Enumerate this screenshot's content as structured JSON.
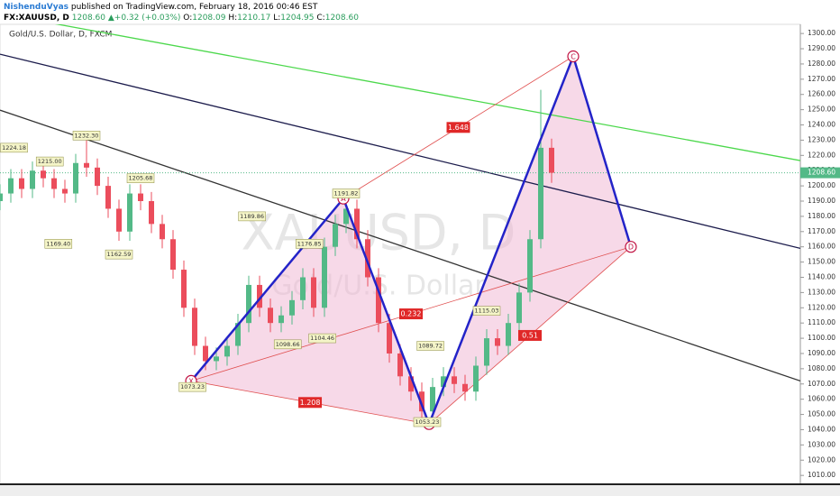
{
  "header": {
    "author": "NishenduVyas",
    "published": "published on TradingView.com, February 18, 2016 00:46 EST",
    "symbol": "FX:XAUUSD, D",
    "last": "1208.60",
    "change": "+0.32 (+0.03%)",
    "o_label": "O:",
    "o": "1208.09",
    "h_label": "H:",
    "h": "1210.17",
    "l_label": "L:",
    "l": "1204.95",
    "c_label": "C:",
    "c": "1208.60"
  },
  "chart_data": {
    "type": "candlestick",
    "title": "Gold/U.S. Dollar, D, FXCM",
    "watermark": "XAUUSD, D",
    "watermark_sub": "Gold/U.S. Dollar",
    "xlim": [
      0,
      74
    ],
    "ylim": [
      1005,
      1306
    ],
    "yticks": [
      {
        "value": 1010,
        "label": "1010.00"
      },
      {
        "value": 1020,
        "label": "1020.00"
      },
      {
        "value": 1030,
        "label": "1030.00"
      },
      {
        "value": 1040,
        "label": "1040.00"
      },
      {
        "value": 1050,
        "label": "1050.00"
      },
      {
        "value": 1060,
        "label": "1060.00"
      },
      {
        "value": 1070,
        "label": "1070.00"
      },
      {
        "value": 1080,
        "label": "1080.00"
      },
      {
        "value": 1090,
        "label": "1090.00"
      },
      {
        "value": 1100,
        "label": "1100.00"
      },
      {
        "value": 1110,
        "label": "1110.00"
      },
      {
        "value": 1120,
        "label": "1120.00"
      },
      {
        "value": 1130,
        "label": "1130.00"
      },
      {
        "value": 1140,
        "label": "1140.00"
      },
      {
        "value": 1150,
        "label": "1150.00"
      },
      {
        "value": 1160,
        "label": "1160.00"
      },
      {
        "value": 1170,
        "label": "1170.00"
      },
      {
        "value": 1180,
        "label": "1180.00"
      },
      {
        "value": 1190,
        "label": "1190.00"
      },
      {
        "value": 1200,
        "label": "1200.00"
      },
      {
        "value": 1210,
        "label": "1210.00"
      },
      {
        "value": 1220,
        "label": "1220.00"
      },
      {
        "value": 1230,
        "label": "1230.00"
      },
      {
        "value": 1240,
        "label": "1240.00"
      },
      {
        "value": 1250,
        "label": "1250.00"
      },
      {
        "value": 1260,
        "label": "1260.00"
      },
      {
        "value": 1270,
        "label": "1270.00"
      },
      {
        "value": 1280,
        "label": "1280.00"
      },
      {
        "value": 1290,
        "label": "1290.00"
      },
      {
        "value": 1300,
        "label": "1300.00"
      }
    ],
    "up_color": "#53b987",
    "down_color": "#eb4d5c",
    "open": [
      1190,
      1195,
      1205,
      1198,
      1210,
      1205,
      1198,
      1195,
      1215,
      1212,
      1200,
      1185,
      1170,
      1195,
      1190,
      1175,
      1165,
      1145,
      1120,
      1095,
      1085,
      1088,
      1095,
      1110,
      1135,
      1120,
      1110,
      1115,
      1125,
      1140,
      1120,
      1160,
      1175,
      1185,
      1165,
      1140,
      1110,
      1090,
      1075,
      1065,
      1052,
      1068,
      1075,
      1070,
      1065,
      1082,
      1100,
      1095,
      1110,
      1130,
      1165,
      1225
    ],
    "high": [
      1201,
      1211,
      1211,
      1216,
      1216,
      1211,
      1204,
      1221,
      1232,
      1218,
      1206,
      1191,
      1201,
      1201,
      1196,
      1181,
      1171,
      1151,
      1126,
      1101,
      1094,
      1101,
      1116,
      1141,
      1141,
      1126,
      1121,
      1131,
      1146,
      1146,
      1166,
      1181,
      1191,
      1191,
      1171,
      1146,
      1116,
      1096,
      1081,
      1071,
      1074,
      1081,
      1081,
      1076,
      1088,
      1106,
      1106,
      1116,
      1136,
      1171,
      1263,
      1231
    ],
    "low": [
      1184,
      1189,
      1192,
      1192,
      1199,
      1192,
      1189,
      1189,
      1206,
      1194,
      1179,
      1164,
      1164,
      1184,
      1169,
      1159,
      1139,
      1114,
      1089,
      1079,
      1079,
      1082,
      1089,
      1104,
      1114,
      1104,
      1104,
      1109,
      1119,
      1114,
      1114,
      1154,
      1169,
      1159,
      1134,
      1104,
      1084,
      1069,
      1059,
      1046,
      1046,
      1062,
      1064,
      1059,
      1059,
      1076,
      1089,
      1089,
      1104,
      1124,
      1159,
      1202
    ],
    "close": [
      1195,
      1205,
      1198,
      1210,
      1205,
      1198,
      1195,
      1215,
      1212,
      1200,
      1185,
      1170,
      1195,
      1190,
      1175,
      1165,
      1145,
      1120,
      1095,
      1085,
      1088,
      1095,
      1110,
      1135,
      1120,
      1110,
      1115,
      1125,
      1140,
      1120,
      1160,
      1175,
      1185,
      1165,
      1140,
      1110,
      1090,
      1075,
      1065,
      1052,
      1068,
      1075,
      1070,
      1065,
      1082,
      1100,
      1095,
      1110,
      1130,
      1165,
      1225,
      1208.6
    ],
    "last_price": {
      "value": 1208.6,
      "label": "1208.60"
    },
    "trendlines": [
      {
        "x": [
          0,
          74
        ],
        "y": [
          1313,
          1216.6
        ],
        "color": "#4cd84c"
      },
      {
        "x": [
          0,
          74
        ],
        "y": [
          1286.4,
          1159
        ],
        "color": "#1c1c4c"
      },
      {
        "x": [
          0,
          74
        ],
        "y": [
          1249.7,
          1072
        ],
        "color": "#333333"
      }
    ],
    "pattern": {
      "color": "#2323c8",
      "fill": "#f0b4d2",
      "points": [
        {
          "name": "X",
          "x": 17.67,
          "y": 1072
        },
        {
          "name": "A",
          "x": 31.75,
          "y": 1191.7
        },
        {
          "name": "B",
          "x": 39.67,
          "y": 1043.7
        },
        {
          "name": "C",
          "x": 53,
          "y": 1285
        },
        {
          "name": "D",
          "x": 58.33,
          "y": 1160
        }
      ],
      "ratios": [
        {
          "label": "1.648",
          "from": 1,
          "to": 3
        },
        {
          "label": "0.232",
          "from": 0,
          "to": 4
        },
        {
          "label": "0.51",
          "from": 2,
          "to": 4
        },
        {
          "label": "1.208",
          "from": 0,
          "to": 2
        }
      ]
    },
    "price_labels": [
      {
        "x": 1.3,
        "y": 1225,
        "label": "1224.18"
      },
      {
        "x": 4.6,
        "y": 1216,
        "label": "1215.00"
      },
      {
        "x": 8,
        "y": 1233,
        "label": "1232.30"
      },
      {
        "x": 13,
        "y": 1205,
        "label": "1205.68"
      },
      {
        "x": 5.4,
        "y": 1162,
        "label": "1169.40"
      },
      {
        "x": 11,
        "y": 1155,
        "label": "1162.59"
      },
      {
        "x": 23.3,
        "y": 1180,
        "label": "1189.86"
      },
      {
        "x": 28.6,
        "y": 1162,
        "label": "1176.85"
      },
      {
        "x": 26.6,
        "y": 1096,
        "label": "1098.66"
      },
      {
        "x": 29.8,
        "y": 1100,
        "label": "1104.46"
      },
      {
        "x": 32,
        "y": 1195,
        "label": "1191.82"
      },
      {
        "x": 45,
        "y": 1118,
        "label": "1115.03"
      },
      {
        "x": 39.8,
        "y": 1095,
        "label": "1089.72"
      },
      {
        "x": 39.5,
        "y": 1045,
        "label": "1053.23"
      },
      {
        "x": 17.8,
        "y": 1068,
        "label": "1073.23"
      }
    ]
  }
}
